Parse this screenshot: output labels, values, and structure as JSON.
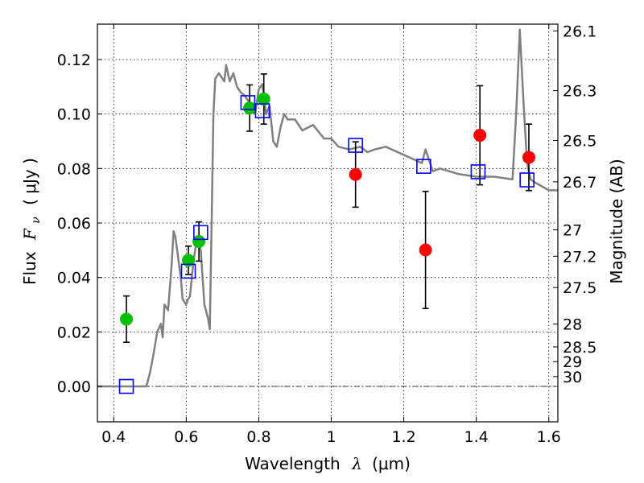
{
  "chart_data": {
    "type": "scatter",
    "xlabel_prefix": "Wavelength",
    "xlabel_symbol": "λ",
    "xlabel_unit": "(μm)",
    "ylabel_prefix": "Flux",
    "ylabel_symbol": "F",
    "ylabel_subscript": "ν",
    "ylabel_unit": "( μJy )",
    "y2label": "Magnitude (AB)",
    "xlim": [
      0.355,
      1.625
    ],
    "ylim": [
      -0.013,
      0.133
    ],
    "grid": true,
    "x_ticks": [
      0.4,
      0.6,
      0.8,
      1.0,
      1.2,
      1.4,
      1.6
    ],
    "x_tick_labels": [
      "0.4",
      "0.6",
      "0.8",
      "1",
      "1.2",
      "1.4",
      "1.6"
    ],
    "y_ticks": [
      0.0,
      0.02,
      0.04,
      0.06,
      0.08,
      0.1,
      0.12
    ],
    "y_tick_labels": [
      "0.00",
      "0.02",
      "0.04",
      "0.06",
      "0.08",
      "0.10",
      "0.12"
    ],
    "y2_ticks": [
      {
        "label": "26.1",
        "flux": 0.1305
      },
      {
        "label": "26.3",
        "flux": 0.1086
      },
      {
        "label": "26.5",
        "flux": 0.0903
      },
      {
        "label": "26.7",
        "flux": 0.0751
      },
      {
        "label": "27",
        "flux": 0.0575
      },
      {
        "label": "27.2",
        "flux": 0.0478
      },
      {
        "label": "27.5",
        "flux": 0.0363
      },
      {
        "label": "28",
        "flux": 0.0229
      },
      {
        "label": "28.5",
        "flux": 0.0145
      },
      {
        "label": "29",
        "flux": 0.0091
      },
      {
        "label": "30",
        "flux": 0.0036
      }
    ],
    "series": [
      {
        "kind": "line",
        "color": "#808080",
        "x": [
          0.355,
          0.49,
          0.5,
          0.51,
          0.52,
          0.53,
          0.535,
          0.54,
          0.55,
          0.56,
          0.565,
          0.57,
          0.575,
          0.58,
          0.585,
          0.59,
          0.6,
          0.605,
          0.61,
          0.62,
          0.63,
          0.64,
          0.65,
          0.66,
          0.665,
          0.67,
          0.675,
          0.68,
          0.69,
          0.7,
          0.705,
          0.71,
          0.72,
          0.73,
          0.74,
          0.75,
          0.76,
          0.77,
          0.78,
          0.79,
          0.8,
          0.81,
          0.82,
          0.83,
          0.84,
          0.85,
          0.86,
          0.87,
          0.88,
          0.9,
          0.92,
          0.95,
          0.98,
          1.0,
          1.02,
          1.05,
          1.08,
          1.1,
          1.12,
          1.15,
          1.2,
          1.25,
          1.26,
          1.28,
          1.3,
          1.35,
          1.4,
          1.45,
          1.5,
          1.51,
          1.52,
          1.53,
          1.54,
          1.55,
          1.56,
          1.6,
          1.625
        ],
        "y": [
          0.0,
          0.0,
          0.005,
          0.012,
          0.02,
          0.023,
          0.018,
          0.03,
          0.028,
          0.045,
          0.057,
          0.055,
          0.05,
          0.045,
          0.04,
          0.032,
          0.03,
          0.032,
          0.033,
          0.046,
          0.055,
          0.05,
          0.03,
          0.025,
          0.021,
          0.06,
          0.1,
          0.113,
          0.115,
          0.113,
          0.112,
          0.118,
          0.112,
          0.115,
          0.11,
          0.108,
          0.107,
          0.105,
          0.103,
          0.1,
          0.109,
          0.111,
          0.1,
          0.103,
          0.09,
          0.088,
          0.095,
          0.1,
          0.098,
          0.098,
          0.094,
          0.096,
          0.091,
          0.091,
          0.088,
          0.087,
          0.088,
          0.086,
          0.087,
          0.088,
          0.085,
          0.082,
          0.087,
          0.079,
          0.08,
          0.078,
          0.077,
          0.077,
          0.076,
          0.1,
          0.131,
          0.105,
          0.082,
          0.076,
          0.075,
          0.072,
          0.072
        ]
      },
      {
        "name": "",
        "kind": "points",
        "marker": "circle",
        "color": "#00c000",
        "x": [
          0.435,
          0.606,
          0.635,
          0.775,
          0.814
        ],
        "y": [
          0.0247,
          0.0463,
          0.0532,
          0.1022,
          0.1055
        ],
        "err": [
          0.0085,
          0.0052,
          0.0072,
          0.0085,
          0.0092
        ]
      },
      {
        "name": "",
        "kind": "points",
        "marker": "circle",
        "color": "#ff0000",
        "x": [
          1.067,
          1.26,
          1.41,
          1.545
        ],
        "y": [
          0.0778,
          0.0501,
          0.0922,
          0.0841
        ],
        "err": [
          0.012,
          0.0215,
          0.0182,
          0.0122
        ]
      },
      {
        "name": "",
        "kind": "points",
        "marker": "square-open",
        "color": "#0000ff",
        "x": [
          0.435,
          0.606,
          0.64,
          0.77,
          0.81,
          1.067,
          1.255,
          1.405,
          1.54
        ],
        "y": [
          0.0,
          0.0423,
          0.0565,
          0.1042,
          0.1012,
          0.0885,
          0.0808,
          0.0788,
          0.0758
        ]
      }
    ]
  }
}
